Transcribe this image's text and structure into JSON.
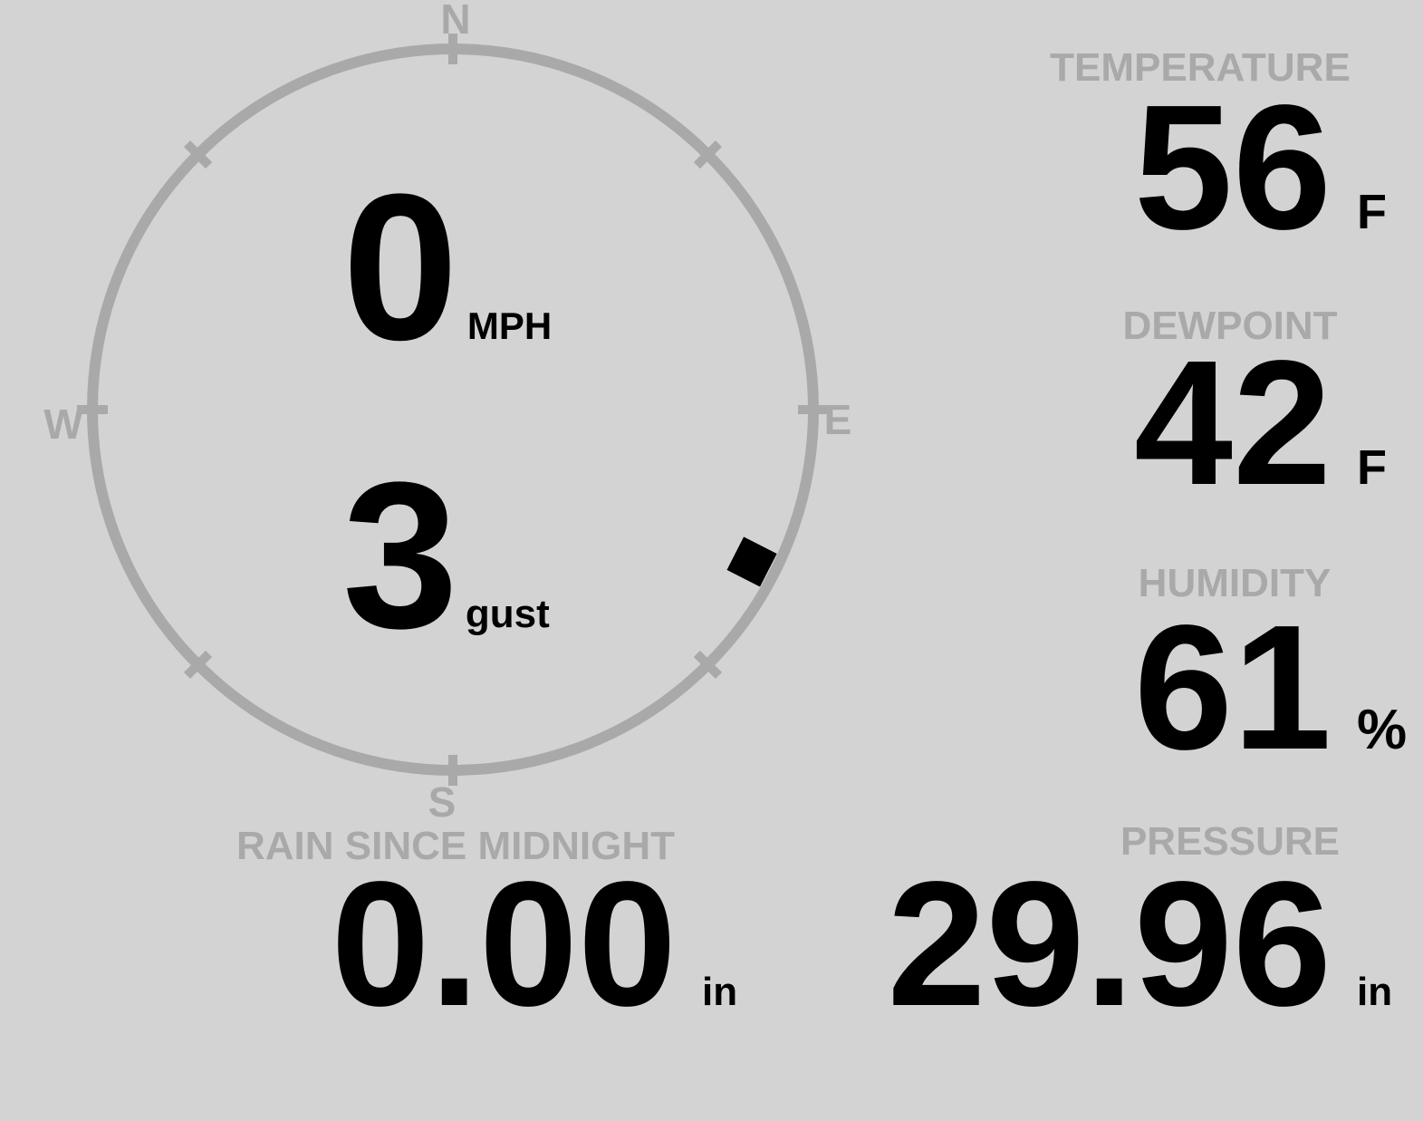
{
  "colors": {
    "background": "#d3d3d3",
    "muted_gray": "#a9a9a9",
    "value_black": "#000000"
  },
  "compass": {
    "cardinal_labels": {
      "north": "N",
      "east": "E",
      "south": "S",
      "west": "W"
    },
    "wind_speed": {
      "value": "0",
      "unit": "MPH"
    },
    "wind_gust": {
      "value": "3",
      "unit": "gust"
    },
    "wind_direction_deg": 117
  },
  "metrics": {
    "temperature": {
      "label": "TEMPERATURE",
      "value": "56",
      "unit": "F"
    },
    "dewpoint": {
      "label": "DEWPOINT",
      "value": "42",
      "unit": "F"
    },
    "humidity": {
      "label": "HUMIDITY",
      "value": "61",
      "unit": "%"
    },
    "rain": {
      "label": "RAIN SINCE MIDNIGHT",
      "value": "0.00",
      "unit": "in"
    },
    "pressure": {
      "label": "PRESSURE",
      "value": "29.96",
      "unit": "in"
    }
  }
}
